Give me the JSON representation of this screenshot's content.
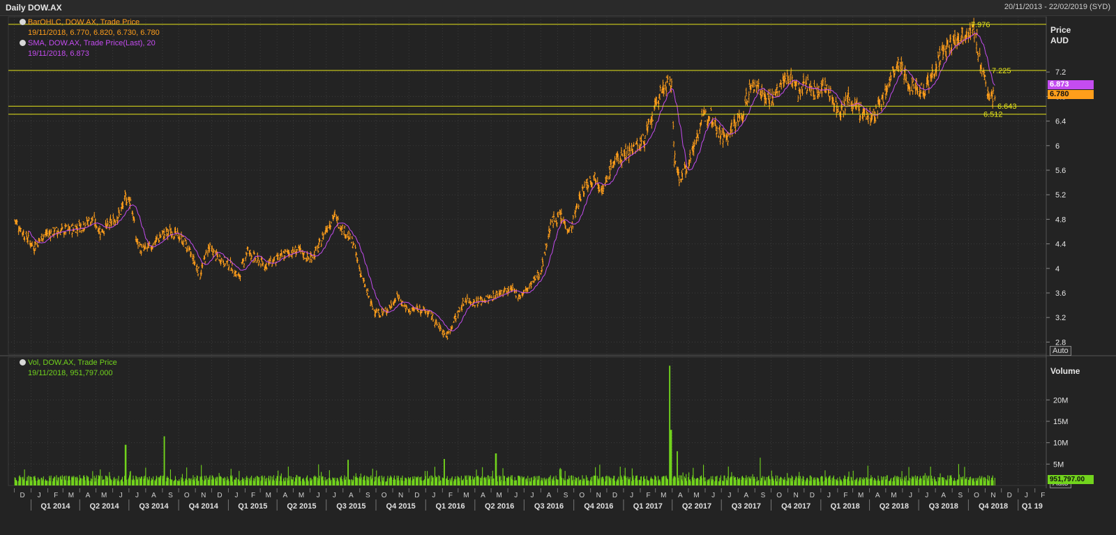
{
  "window": {
    "title": "Daily DOW.AX",
    "date_range": "20/11/2013 - 22/02/2019 (SYD)"
  },
  "legend_price": {
    "ohlc_title": "BarOHLC, DOW.AX, Trade Price",
    "ohlc_values": "19/11/2018, 6.770, 6.820, 6.730, 6.780",
    "sma_title": "SMA, DOW.AX, Trade Price(Last),  20",
    "sma_values": "19/11/2018, 6.873"
  },
  "legend_volume": {
    "title": "Vol, DOW.AX, Trade Price",
    "values": "19/11/2018, 951,797.000"
  },
  "price_axis": {
    "label": "Price",
    "currency": "AUD",
    "auto_label": "Auto"
  },
  "volume_axis": {
    "label": "Volume",
    "auto_label": "Auto"
  },
  "last_tags": {
    "sma": "6.873",
    "price": "6.780",
    "volume": "951,797.00"
  },
  "colors": {
    "price": "#ff9e1b",
    "sma": "#c44cf0",
    "volume": "#72d41d",
    "hline": "#e6e51a",
    "background": "#232323",
    "grid": "#3b3b3b"
  },
  "chart_data": {
    "type": "line",
    "title": "Daily DOW.AX",
    "ylabel": "Price AUD",
    "ylim": [
      2.6,
      8.1
    ],
    "yticks": [
      2.8,
      3.2,
      3.6,
      4,
      4.4,
      4.8,
      5.2,
      5.6,
      6,
      6.4,
      6.8,
      7.2
    ],
    "ytick_labels": [
      "2.8",
      "3.2",
      "3.6",
      "4",
      "4.4",
      "4.8",
      "5.2",
      "5.6",
      "6",
      "6.4",
      "6.8",
      "7.2"
    ],
    "x_months": [
      "D",
      "J",
      "F",
      "M",
      "A",
      "M",
      "J",
      "J",
      "A",
      "S",
      "O",
      "N",
      "D",
      "J",
      "F",
      "M",
      "A",
      "M",
      "J",
      "J",
      "A",
      "S",
      "O",
      "N",
      "D",
      "J",
      "F",
      "M",
      "A",
      "M",
      "J",
      "J",
      "A",
      "S",
      "O",
      "N",
      "D",
      "J",
      "F",
      "M",
      "A",
      "M",
      "J",
      "J",
      "A",
      "S",
      "O",
      "N",
      "D",
      "J",
      "F",
      "M",
      "A",
      "M",
      "J",
      "J",
      "A",
      "S",
      "O",
      "N",
      "D",
      "J",
      "F"
    ],
    "x_quarters": [
      "Q1 2014",
      "Q2 2014",
      "Q3 2014",
      "Q4 2014",
      "Q1 2015",
      "Q2 2015",
      "Q3 2015",
      "Q4 2015",
      "Q1 2016",
      "Q2 2016",
      "Q3 2016",
      "Q4 2016",
      "Q1 2017",
      "Q2 2017",
      "Q3 2017",
      "Q4 2017",
      "Q1 2018",
      "Q2 2018",
      "Q3 2018",
      "Q4 2018",
      "Q1 19"
    ],
    "price_points": [
      [
        "2013-12-01",
        4.8
      ],
      [
        "2013-12-20",
        4.55
      ],
      [
        "2014-01-06",
        4.35
      ],
      [
        "2014-01-25",
        4.55
      ],
      [
        "2014-02-15",
        4.6
      ],
      [
        "2014-03-10",
        4.62
      ],
      [
        "2014-04-05",
        4.7
      ],
      [
        "2014-04-25",
        4.8
      ],
      [
        "2014-05-10",
        4.6
      ],
      [
        "2014-05-30",
        4.75
      ],
      [
        "2014-06-15",
        4.9
      ],
      [
        "2014-06-25",
        5.15
      ],
      [
        "2014-07-05",
        5.1
      ],
      [
        "2014-07-15",
        4.45
      ],
      [
        "2014-07-25",
        4.3
      ],
      [
        "2014-08-10",
        4.35
      ],
      [
        "2014-09-01",
        4.55
      ],
      [
        "2014-09-20",
        4.6
      ],
      [
        "2014-10-10",
        4.45
      ],
      [
        "2014-10-25",
        4.2
      ],
      [
        "2014-11-10",
        3.9
      ],
      [
        "2014-11-25",
        4.35
      ],
      [
        "2014-12-10",
        4.2
      ],
      [
        "2015-01-05",
        4.05
      ],
      [
        "2015-01-20",
        3.85
      ],
      [
        "2015-02-05",
        4.3
      ],
      [
        "2015-02-20",
        4.15
      ],
      [
        "2015-03-10",
        4.05
      ],
      [
        "2015-04-01",
        4.15
      ],
      [
        "2015-04-20",
        4.25
      ],
      [
        "2015-05-10",
        4.3
      ],
      [
        "2015-05-30",
        4.15
      ],
      [
        "2015-06-15",
        4.3
      ],
      [
        "2015-07-01",
        4.65
      ],
      [
        "2015-07-15",
        4.85
      ],
      [
        "2015-08-01",
        4.65
      ],
      [
        "2015-08-20",
        4.4
      ],
      [
        "2015-09-05",
        3.85
      ],
      [
        "2015-09-25",
        3.35
      ],
      [
        "2015-10-10",
        3.25
      ],
      [
        "2015-10-25",
        3.35
      ],
      [
        "2015-11-10",
        3.55
      ],
      [
        "2015-11-30",
        3.3
      ],
      [
        "2015-12-20",
        3.35
      ],
      [
        "2016-01-10",
        3.25
      ],
      [
        "2016-01-25",
        3.05
      ],
      [
        "2016-02-10",
        2.9
      ],
      [
        "2016-02-25",
        3.2
      ],
      [
        "2016-03-15",
        3.5
      ],
      [
        "2016-04-01",
        3.45
      ],
      [
        "2016-04-25",
        3.5
      ],
      [
        "2016-05-15",
        3.6
      ],
      [
        "2016-06-05",
        3.65
      ],
      [
        "2016-06-25",
        3.55
      ],
      [
        "2016-07-15",
        3.75
      ],
      [
        "2016-08-01",
        3.95
      ],
      [
        "2016-08-20",
        4.75
      ],
      [
        "2016-09-05",
        4.85
      ],
      [
        "2016-09-25",
        4.6
      ],
      [
        "2016-10-10",
        5.1
      ],
      [
        "2016-10-25",
        5.4
      ],
      [
        "2016-11-10",
        5.5
      ],
      [
        "2016-11-25",
        5.25
      ],
      [
        "2016-12-10",
        5.7
      ],
      [
        "2016-12-25",
        5.8
      ],
      [
        "2017-01-15",
        5.95
      ],
      [
        "2017-02-05",
        6.05
      ],
      [
        "2017-02-20",
        6.35
      ],
      [
        "2017-03-05",
        6.75
      ],
      [
        "2017-03-20",
        7.0
      ],
      [
        "2017-04-01",
        6.95
      ],
      [
        "2017-04-05",
        5.8
      ],
      [
        "2017-04-15",
        5.45
      ],
      [
        "2017-04-25",
        5.6
      ],
      [
        "2017-05-10",
        5.95
      ],
      [
        "2017-05-25",
        6.4
      ],
      [
        "2017-06-10",
        6.55
      ],
      [
        "2017-06-25",
        6.25
      ],
      [
        "2017-07-10",
        6.1
      ],
      [
        "2017-07-25",
        6.35
      ],
      [
        "2017-08-10",
        6.5
      ],
      [
        "2017-08-20",
        6.9
      ],
      [
        "2017-09-05",
        7.0
      ],
      [
        "2017-09-20",
        6.8
      ],
      [
        "2017-10-05",
        6.75
      ],
      [
        "2017-10-20",
        7.0
      ],
      [
        "2017-11-05",
        7.15
      ],
      [
        "2017-11-20",
        6.9
      ],
      [
        "2017-12-05",
        7.0
      ],
      [
        "2017-12-20",
        6.85
      ],
      [
        "2018-01-05",
        7.0
      ],
      [
        "2018-01-20",
        6.8
      ],
      [
        "2018-02-05",
        6.55
      ],
      [
        "2018-02-20",
        6.75
      ],
      [
        "2018-03-10",
        6.6
      ],
      [
        "2018-03-25",
        6.5
      ],
      [
        "2018-04-10",
        6.45
      ],
      [
        "2018-04-25",
        6.75
      ],
      [
        "2018-05-10",
        7.1
      ],
      [
        "2018-05-25",
        7.3
      ],
      [
        "2018-06-10",
        7.05
      ],
      [
        "2018-06-25",
        6.95
      ],
      [
        "2018-07-10",
        6.9
      ],
      [
        "2018-07-25",
        7.15
      ],
      [
        "2018-08-10",
        7.45
      ],
      [
        "2018-08-25",
        7.6
      ],
      [
        "2018-09-10",
        7.75
      ],
      [
        "2018-09-25",
        7.85
      ],
      [
        "2018-10-05",
        7.9
      ],
      [
        "2018-10-15",
        7.8
      ],
      [
        "2018-10-25",
        7.25
      ],
      [
        "2018-11-05",
        6.9
      ],
      [
        "2018-11-19",
        6.78
      ]
    ],
    "sma_period": 20,
    "volume_ylim": [
      0,
      30000000
    ],
    "volume_yticks": [
      5000000,
      10000000,
      15000000,
      20000000
    ],
    "volume_ytick_labels": [
      "5M",
      "10M",
      "15M",
      "20M"
    ],
    "volume_spikes": [
      [
        "2014-06-25",
        9500000
      ],
      [
        "2014-09-05",
        11500000
      ],
      [
        "2015-08-10",
        6000000
      ],
      [
        "2016-02-05",
        6200000
      ],
      [
        "2016-05-10",
        7500000
      ],
      [
        "2017-03-28",
        28000000
      ],
      [
        "2017-03-30",
        13000000
      ],
      [
        "2017-04-10",
        8000000
      ],
      [
        "2017-09-10",
        6500000
      ]
    ],
    "horizontal_lines": [
      {
        "value": 7.976,
        "label": "7.976"
      },
      {
        "value": 7.225,
        "label": "7.225"
      },
      {
        "value": 6.643,
        "label": "6.643"
      },
      {
        "value": 6.512,
        "label": "6.512"
      }
    ]
  }
}
